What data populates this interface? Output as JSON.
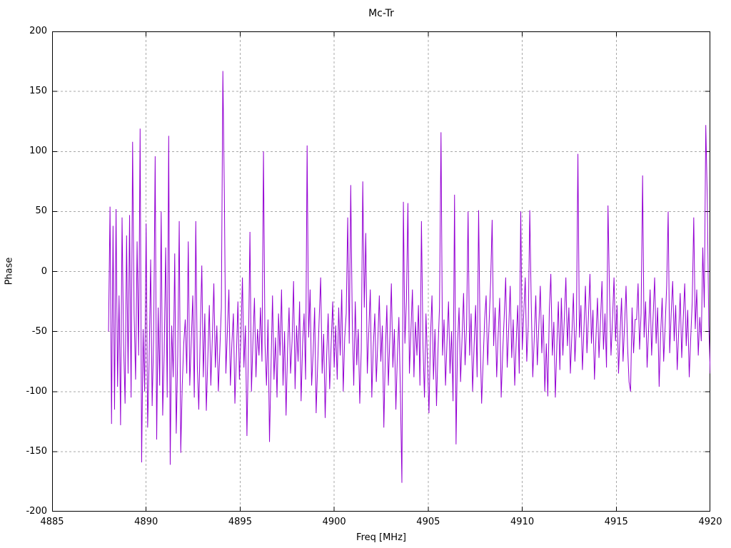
{
  "window": {
    "background": "#ffffff"
  },
  "chart_data": {
    "type": "line",
    "title": "Mc-Tr",
    "xlabel": "Freq [MHz]",
    "ylabel": "Phase",
    "xlim": [
      4885,
      4920
    ],
    "ylim": [
      -200,
      200
    ],
    "x_ticks": [
      4885,
      4890,
      4895,
      4900,
      4905,
      4910,
      4915,
      4920
    ],
    "y_ticks": [
      -200,
      -150,
      -100,
      -50,
      0,
      50,
      100,
      150,
      200
    ],
    "grid": true,
    "grid_style": "dashed",
    "grid_color": "#a8a8a8",
    "axis_color": "#000000",
    "text_color": "#000000",
    "legend_position": "none",
    "series": [
      {
        "name": "Mc-Tr",
        "color": "#9400d3",
        "x_start": 4888.0,
        "x_step": 0.08,
        "values": [
          -50,
          54,
          -127,
          38,
          -115,
          52,
          -96,
          -20,
          -128,
          45,
          -60,
          -110,
          30,
          -85,
          47,
          -105,
          108,
          -35,
          -90,
          25,
          -70,
          119,
          -159,
          -48,
          -100,
          40,
          -130,
          -75,
          10,
          -112,
          -55,
          96,
          -140,
          -30,
          -95,
          50,
          -120,
          -68,
          20,
          -105,
          113,
          -161,
          -45,
          -88,
          15,
          -135,
          -70,
          42,
          -151,
          -95,
          -60,
          -40,
          -85,
          25,
          -95,
          -58,
          -20,
          -105,
          42,
          -78,
          -115,
          -50,
          5,
          -88,
          -35,
          -116,
          -72,
          -28,
          -95,
          -55,
          -10,
          -80,
          -45,
          -100,
          -65,
          -30,
          167,
          64,
          -85,
          -50,
          -15,
          -95,
          -60,
          -35,
          -110,
          -70,
          -25,
          -90,
          -55,
          -5,
          -80,
          -45,
          -137,
          -65,
          33,
          -100,
          -58,
          -22,
          -88,
          -48,
          -70,
          -30,
          -75,
          100,
          -60,
          -95,
          -40,
          -142,
          -80,
          -20,
          -90,
          -55,
          -105,
          -35,
          -70,
          -15,
          -95,
          -50,
          -120,
          -65,
          -30,
          -85,
          -58,
          -8,
          -98,
          -45,
          -75,
          -25,
          -108,
          -60,
          -35,
          -90,
          105,
          -55,
          -15,
          -95,
          -68,
          -30,
          -118,
          -78,
          -40,
          -5,
          -85,
          -52,
          -122,
          -70,
          -35,
          -98,
          -60,
          -25,
          -80,
          -45,
          -90,
          -30,
          -70,
          -15,
          -100,
          -55,
          -35,
          45,
          -60,
          72,
          -40,
          -95,
          -25,
          -78,
          -48,
          -110,
          -65,
          75,
          -30,
          32,
          -85,
          -50,
          -15,
          -105,
          -62,
          -35,
          -92,
          -58,
          -20,
          -75,
          -45,
          -130,
          -68,
          -28,
          -95,
          -55,
          -10,
          -80,
          -48,
          -115,
          -70,
          -38,
          -100,
          -176,
          58,
          -60,
          -25,
          57,
          -85,
          -50,
          -15,
          -88,
          -42,
          -70,
          -28,
          -95,
          42,
          -60,
          -105,
          -35,
          -75,
          -118,
          -55,
          -20,
          -90,
          -48,
          -112,
          -65,
          -30,
          116,
          -70,
          -40,
          -95,
          -58,
          -25,
          -85,
          -50,
          -108,
          64,
          -144,
          -60,
          -30,
          -92,
          -55,
          -18,
          -78,
          -45,
          50,
          -70,
          -35,
          -100,
          -62,
          -28,
          -88,
          51,
          -55,
          -110,
          -75,
          -40,
          -20,
          -78,
          -42,
          -8,
          43,
          -62,
          -30,
          -88,
          -52,
          -22,
          -105,
          -68,
          -38,
          -5,
          -80,
          -48,
          -12,
          -72,
          -40,
          -95,
          -58,
          -28,
          -85,
          50,
          -65,
          -35,
          -5,
          -75,
          -45,
          51,
          -28,
          -88,
          -55,
          -20,
          -78,
          -46,
          -12,
          -68,
          -36,
          -100,
          -60,
          -104,
          -32,
          -2,
          -70,
          -42,
          -105,
          -62,
          -25,
          -82,
          -22,
          -70,
          -38,
          -5,
          -62,
          -30,
          -85,
          -52,
          -18,
          -75,
          -45,
          98,
          -55,
          -28,
          -82,
          -48,
          -12,
          -68,
          -38,
          -2,
          -60,
          -32,
          -90,
          -55,
          -22,
          -72,
          -42,
          -8,
          -65,
          -35,
          -80,
          55,
          -18,
          -70,
          -40,
          -5,
          -58,
          -28,
          -85,
          -52,
          -22,
          -75,
          -45,
          -12,
          -62,
          -92,
          -100,
          -30,
          -68,
          -40,
          -40,
          -10,
          -65,
          -35,
          80,
          -55,
          -25,
          -80,
          -48,
          -15,
          -70,
          -38,
          -5,
          -60,
          -30,
          -96,
          -52,
          -22,
          -75,
          -45,
          -12,
          50,
          -68,
          -35,
          -8,
          -58,
          -28,
          -82,
          -50,
          -18,
          -72,
          -40,
          -10,
          -62,
          -32,
          -88,
          -55,
          -25,
          45,
          -48,
          -15,
          -70,
          -38,
          -58,
          20,
          -30,
          122,
          60,
          -45,
          -85
        ]
      }
    ]
  }
}
